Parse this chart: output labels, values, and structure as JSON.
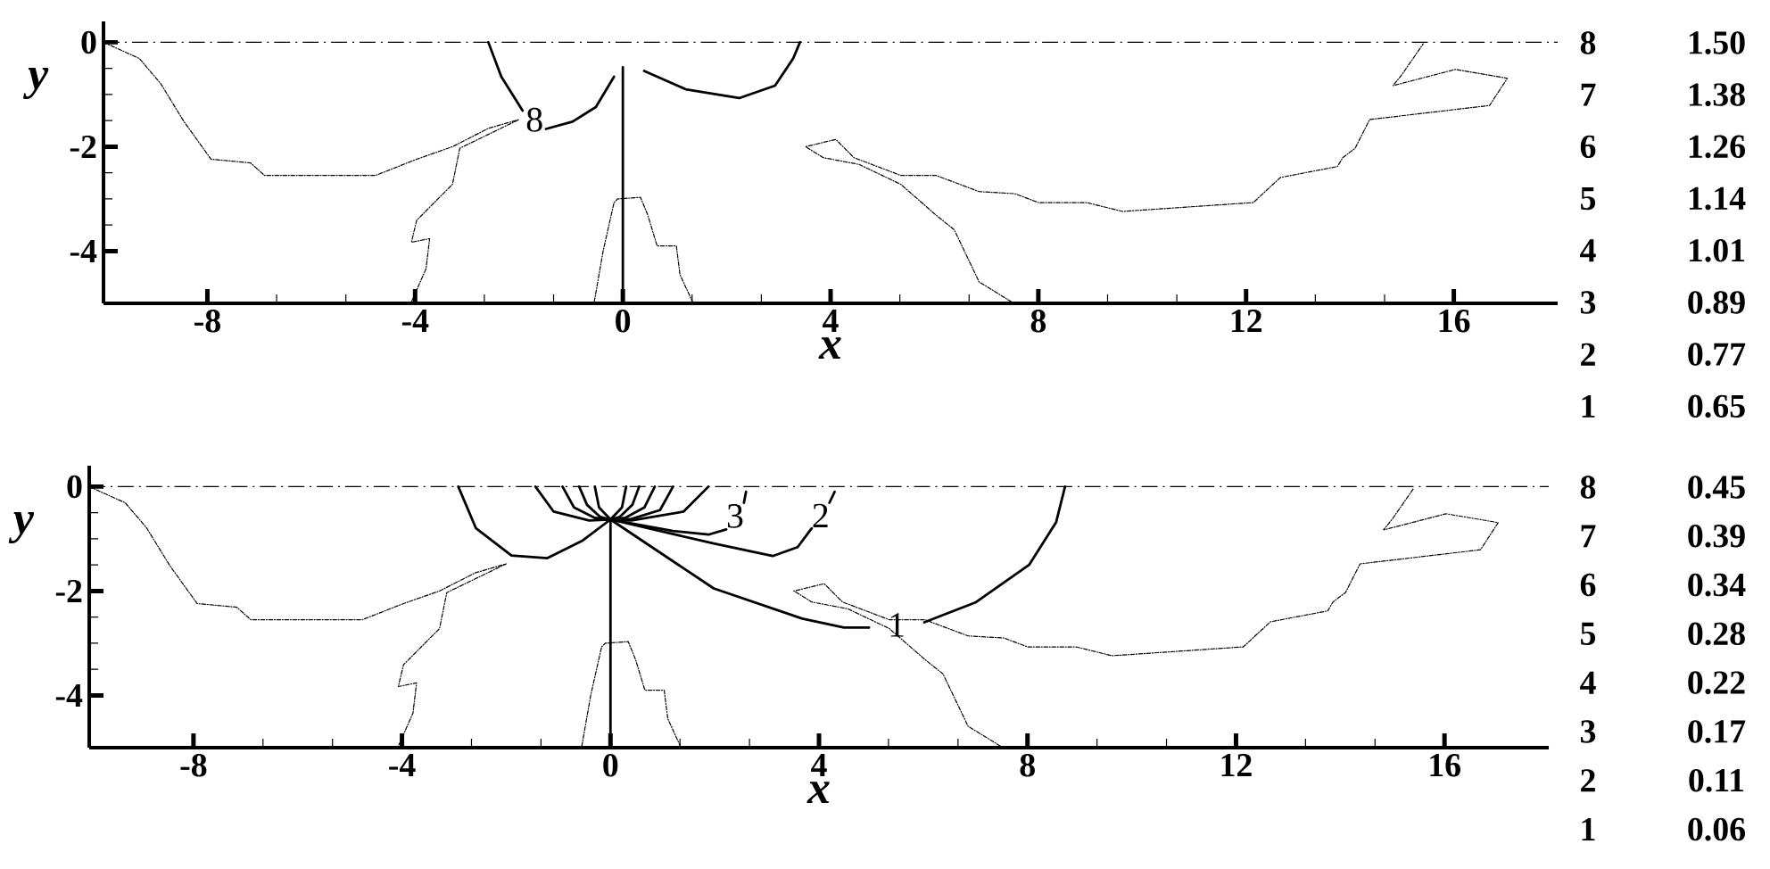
{
  "chart_data": [
    {
      "type": "line",
      "xlabel": "x",
      "ylabel": "y",
      "xlim": [
        -10,
        18
      ],
      "ylim": [
        -5,
        0.4
      ],
      "xticks": [
        -8,
        -4,
        0,
        4,
        8,
        12,
        16
      ],
      "yticks": [
        0,
        -2,
        -4
      ],
      "ref_lines": [
        {
          "axis": "y",
          "value": 0,
          "line_style": "dashed",
          "color": "#000000"
        }
      ],
      "annotations": [
        "8",
        "1.50",
        "7",
        "1.38",
        "6",
        "1.26",
        "5",
        "1.14",
        "4",
        "1.01",
        "3",
        "0.89",
        "2",
        "0.77",
        "1",
        "0.65"
      ],
      "series": [
        {
          "color": "#000000",
          "line_style": "dotted",
          "x": [
            -10,
            -9.31,
            -8.9,
            -8.45,
            -7.93,
            -7.17,
            -6.9,
            -4.76,
            -3.97,
            -3.28,
            -2.59,
            -2.0,
            -3.14,
            -3.28,
            -3.97,
            -4.07,
            -3.72,
            -3.79,
            -4.07
          ],
          "values": [
            0,
            -0.31,
            -0.79,
            -1.52,
            -2.24,
            -2.31,
            -2.55,
            -2.55,
            -2.24,
            -2.0,
            -1.65,
            -1.48,
            -2.03,
            -2.72,
            -3.41,
            -3.83,
            -3.76,
            -4.34,
            -4.97
          ]
        },
        {
          "color": "#000000",
          "line_style": "dotted",
          "x": [
            -0.55,
            -0.38,
            -0.17,
            -0.1,
            0.34,
            0.48,
            0.66,
            1.03,
            1.1,
            1.34
          ],
          "values": [
            -4.97,
            -4.0,
            -3.07,
            -3.0,
            -2.97,
            -3.31,
            -3.9,
            -3.9,
            -4.45,
            -4.97
          ]
        },
        {
          "color": "#000000",
          "line_style": "dotted",
          "x": [
            7.48,
            6.86,
            6.38,
            6.03,
            5.35,
            4.55,
            3.86,
            3.52,
            4.1,
            4.45,
            5.35,
            6.03,
            6.86,
            7.55,
            8.0,
            8.93,
            9.62,
            12.14,
            12.66,
            13.76,
            13.86,
            14.1,
            14.38,
            16.69,
            17.03,
            16.03,
            14.83,
            15.0,
            15.41
          ],
          "values": [
            -4.97,
            -4.59,
            -3.59,
            -3.31,
            -2.72,
            -2.34,
            -2.21,
            -2.0,
            -1.86,
            -2.21,
            -2.55,
            -2.55,
            -2.86,
            -2.9,
            -3.07,
            -3.07,
            -3.24,
            -3.07,
            -2.59,
            -2.38,
            -2.21,
            -2.03,
            -1.48,
            -1.21,
            -0.69,
            -0.52,
            -0.83,
            -0.62,
            -0.03
          ]
        },
        {
          "name": "8",
          "color": "#000000",
          "line_style": "solid",
          "x": [
            -2.59,
            -2.34,
            -1.93,
            -1.7,
            -1.48,
            -0.97,
            -0.52,
            -0.17
          ],
          "values": [
            0,
            -0.66,
            -1.31,
            null,
            -1.66,
            -1.52,
            -1.24,
            -0.66
          ]
        },
        {
          "color": "#000000",
          "line_style": "solid",
          "x": [
            0.41,
            1.21,
            2.24,
            2.93,
            3.28,
            3.41
          ],
          "values": [
            -0.55,
            -0.9,
            -1.07,
            -0.83,
            -0.31,
            0
          ]
        },
        {
          "color": "#000000",
          "line_style": "solid",
          "x": [
            0,
            0
          ],
          "values": [
            -5,
            -0.48
          ]
        }
      ]
    },
    {
      "type": "line",
      "xlabel": "x",
      "ylabel": "y",
      "xlim": [
        -10,
        18
      ],
      "ylim": [
        -5,
        0.4
      ],
      "xticks": [
        -8,
        -4,
        0,
        4,
        8,
        12,
        16
      ],
      "yticks": [
        0,
        -2,
        -4
      ],
      "ref_lines": [
        {
          "axis": "y",
          "value": 0,
          "line_style": "dashed",
          "color": "#000000"
        }
      ],
      "annotations": [
        "8",
        "0.45",
        "7",
        "0.39",
        "6",
        "0.34",
        "5",
        "0.28",
        "4",
        "0.22",
        "3",
        "0.17",
        "2",
        "0.11",
        "1",
        "0.06"
      ],
      "series": [
        {
          "color": "#000000",
          "line_style": "dotted",
          "x": [
            -10,
            -9.31,
            -8.9,
            -8.45,
            -7.93,
            -7.17,
            -6.9,
            -4.76,
            -3.97,
            -3.28,
            -2.59,
            -2.0,
            -3.14,
            -3.28,
            -3.97,
            -4.07,
            -3.72,
            -3.79,
            -4.07
          ],
          "values": [
            0,
            -0.31,
            -0.79,
            -1.52,
            -2.24,
            -2.31,
            -2.55,
            -2.55,
            -2.24,
            -2.0,
            -1.65,
            -1.48,
            -2.03,
            -2.72,
            -3.41,
            -3.83,
            -3.76,
            -4.34,
            -4.97
          ]
        },
        {
          "color": "#000000",
          "line_style": "dotted",
          "x": [
            -0.55,
            -0.38,
            -0.17,
            -0.1,
            0.34,
            0.48,
            0.66,
            1.03,
            1.1,
            1.34
          ],
          "values": [
            -4.97,
            -4.0,
            -3.07,
            -3.0,
            -2.97,
            -3.31,
            -3.9,
            -3.9,
            -4.45,
            -4.97
          ]
        },
        {
          "color": "#000000",
          "line_style": "dotted",
          "x": [
            7.48,
            6.86,
            6.38,
            6.03,
            5.35,
            4.55,
            3.86,
            3.52,
            4.1,
            4.45,
            5.35,
            6.03,
            6.86,
            7.55,
            8.0,
            8.93,
            9.62,
            12.14,
            12.66,
            13.76,
            13.86,
            14.1,
            14.38,
            16.69,
            17.03,
            16.03,
            14.83,
            15.0,
            15.41
          ],
          "values": [
            -4.97,
            -4.59,
            -3.59,
            -3.31,
            -2.72,
            -2.34,
            -2.21,
            -2.0,
            -1.86,
            -2.21,
            -2.55,
            -2.55,
            -2.86,
            -2.9,
            -3.07,
            -3.07,
            -3.24,
            -3.07,
            -2.59,
            -2.38,
            -2.21,
            -2.03,
            -1.48,
            -1.21,
            -0.69,
            -0.52,
            -0.83,
            -0.62,
            -0.03
          ]
        },
        {
          "name": "1",
          "color": "#000000",
          "line_style": "solid",
          "x": [
            -2.92,
            -2.58,
            -1.9,
            -1.21,
            -0.53,
            0,
            1.98,
            3.68,
            4.48,
            4.96,
            5.49,
            6.02,
            7.0,
            8.03,
            8.55,
            8.72
          ],
          "values": [
            0,
            -0.8,
            -1.32,
            -1.37,
            -1.03,
            -0.63,
            -1.95,
            -2.53,
            -2.7,
            -2.7,
            null,
            -2.6,
            -2.22,
            -1.5,
            -0.68,
            0
          ]
        },
        {
          "name": "2",
          "color": "#000000",
          "line_style": "solid",
          "x": [
            -1.44,
            -1.09,
            -0.41,
            0,
            1.98,
            3.11,
            3.59,
            3.86,
            4.03,
            4.2,
            4.3
          ],
          "values": [
            0,
            -0.48,
            -0.65,
            -0.63,
            -1.09,
            -1.33,
            -1.16,
            -0.8,
            null,
            -0.31,
            -0.1
          ]
        },
        {
          "name": "3",
          "color": "#000000",
          "line_style": "solid",
          "x": [
            -0.92,
            -0.7,
            -0.3,
            0,
            1.2,
            1.88,
            2.22,
            2.39,
            2.56,
            2.6
          ],
          "values": [
            0,
            -0.4,
            -0.6,
            -0.63,
            -0.85,
            -0.92,
            -0.82,
            null,
            -0.31,
            -0.1
          ]
        },
        {
          "color": "#000000",
          "line_style": "solid",
          "x": [
            -0.6,
            -0.45,
            -0.2,
            0,
            0.4,
            1.4,
            1.88
          ],
          "values": [
            0,
            -0.35,
            -0.58,
            -0.63,
            -0.65,
            -0.48,
            0
          ]
        },
        {
          "color": "#000000",
          "line_style": "solid",
          "x": [
            -0.3,
            -0.22,
            0,
            0.4,
            0.95,
            1.2
          ],
          "values": [
            0,
            -0.4,
            -0.63,
            -0.62,
            -0.45,
            0
          ]
        },
        {
          "color": "#000000",
          "line_style": "solid",
          "x": [
            0.3,
            0.22,
            0,
            0.18,
            0.42,
            0.55
          ],
          "values": [
            0,
            -0.4,
            -0.63,
            -0.58,
            -0.35,
            0
          ]
        },
        {
          "color": "#000000",
          "line_style": "solid",
          "x": [
            0.85,
            0.65,
            0.28,
            0
          ],
          "values": [
            0,
            -0.4,
            -0.6,
            -0.63
          ]
        },
        {
          "color": "#000000",
          "line_style": "solid",
          "x": [
            0,
            0
          ],
          "values": [
            -5,
            -0.63
          ]
        }
      ]
    }
  ]
}
